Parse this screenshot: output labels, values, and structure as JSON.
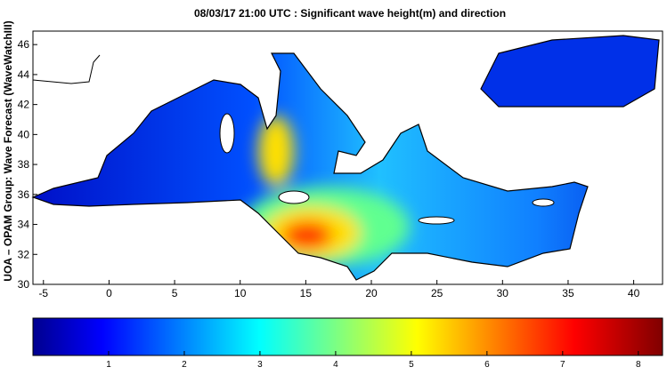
{
  "title": "08/03/17 21:00 UTC : Significant wave height(m) and direction",
  "y_axis_label": "UOA – OPAM Group: Wave Forecast  (WaveWatchIII)",
  "map": {
    "xlim": [
      -5.8,
      42.2
    ],
    "ylim": [
      30,
      46.9
    ],
    "xticks": [
      -5,
      0,
      5,
      10,
      15,
      20,
      25,
      30,
      35,
      40
    ],
    "yticks": [
      30,
      32,
      34,
      36,
      38,
      40,
      42,
      44,
      46
    ]
  },
  "colorbar": {
    "lim": [
      0,
      8.32
    ],
    "ticks": [
      1,
      2,
      3,
      4,
      5,
      6,
      7,
      8
    ]
  }
}
